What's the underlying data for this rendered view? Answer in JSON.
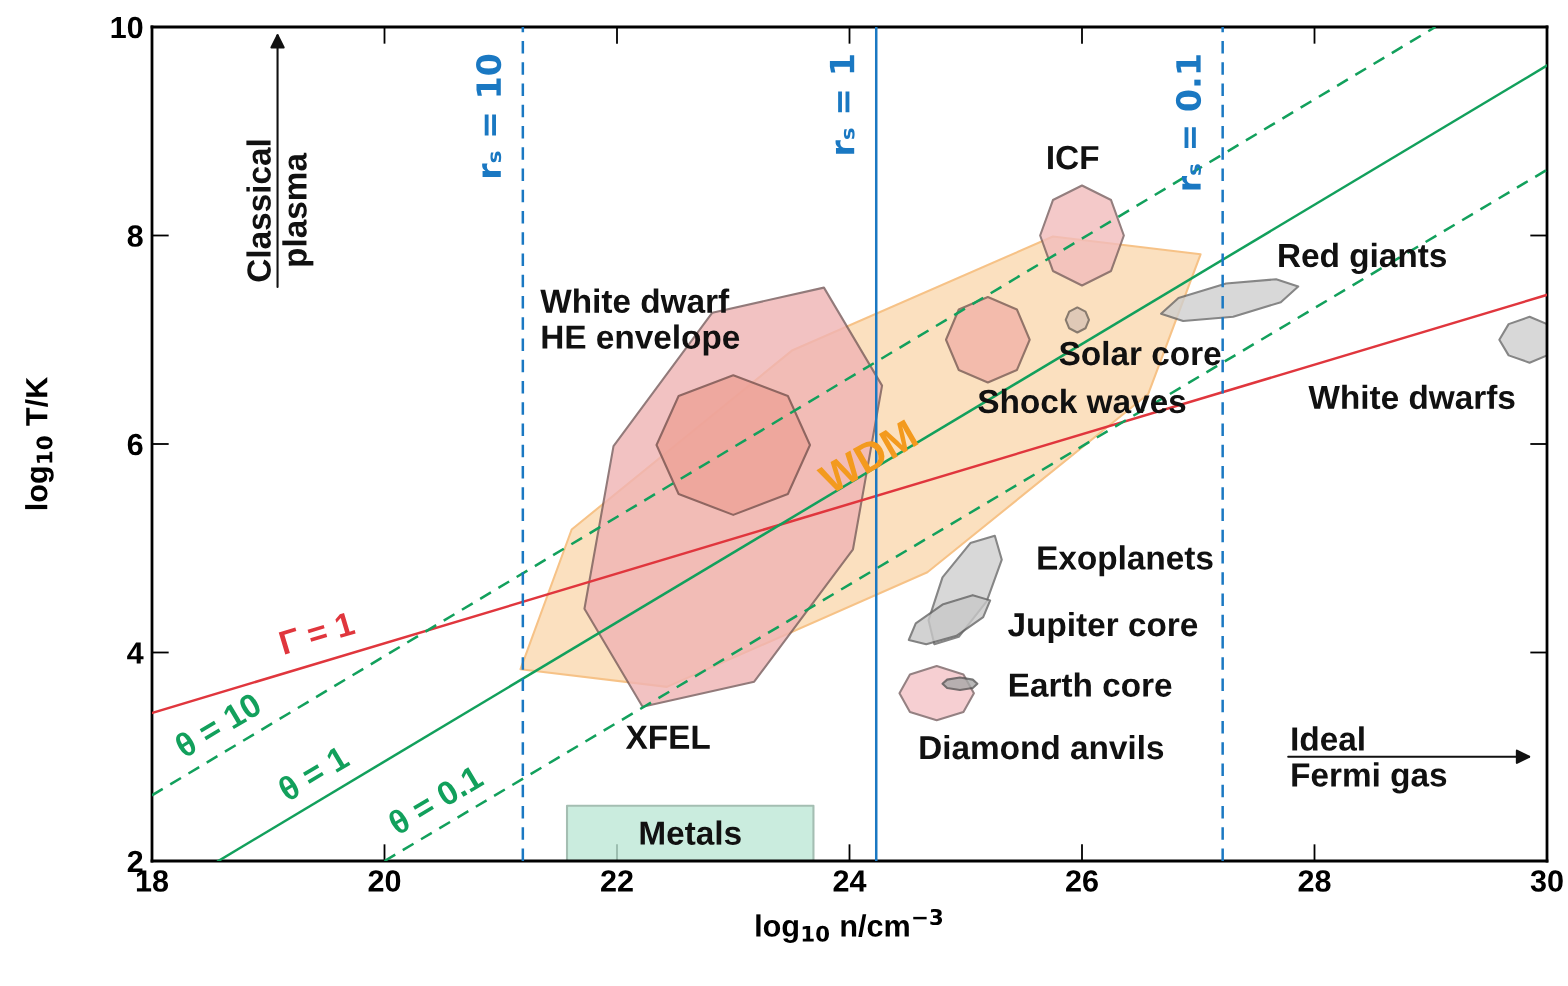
{
  "chart_data": {
    "type": "line",
    "xlabel": "log$_{10}$ n/cm$^{−3}$",
    "ylabel": "log$_{10}$ T/K",
    "xlim": [
      18,
      30
    ],
    "xticks": [
      18,
      20,
      22,
      24,
      26,
      28,
      30
    ],
    "ylim": [
      2,
      10
    ],
    "yticks": [
      2,
      4,
      6,
      8,
      10
    ],
    "grid": false,
    "legend": false,
    "series": [
      {
        "type": "area",
        "color": "#fbd9b0",
        "x": [
          27.02,
          26.57,
          24.67,
          22.43,
          21.17,
          21.61,
          23.51,
          25.75
        ],
        "values": [
          7.82,
          6.48,
          4.77,
          3.67,
          3.84,
          5.18,
          6.9,
          7.99
        ]
      },
      {
        "type": "area",
        "color": "#f0b4b4",
        "x": [
          23.78,
          24.28,
          24.03,
          23.18,
          22.22,
          21.72,
          21.97,
          22.82
        ],
        "values": [
          7.5,
          6.56,
          4.99,
          3.72,
          3.48,
          4.42,
          5.98,
          7.26
        ]
      },
      {
        "type": "area",
        "color": "#eea297",
        "x": [
          23.66,
          23.47,
          23.0,
          22.53,
          22.34,
          22.53,
          23.0,
          23.47
        ],
        "values": [
          5.99,
          6.46,
          6.66,
          6.46,
          5.99,
          5.52,
          5.32,
          5.52
        ]
      },
      {
        "type": "area",
        "color": "#f2bcbc",
        "x": [
          26.36,
          26.25,
          26.0,
          25.75,
          25.64,
          25.75,
          26.0,
          26.25
        ],
        "values": [
          8.0,
          8.34,
          8.48,
          8.34,
          8.0,
          7.66,
          7.52,
          7.66
        ]
      },
      {
        "type": "area",
        "color": "#d9c4b6",
        "x": [
          26.06,
          26.03,
          25.96,
          25.89,
          25.86,
          25.89,
          25.96,
          26.03
        ],
        "values": [
          7.19,
          7.27,
          7.31,
          7.27,
          7.19,
          7.11,
          7.07,
          7.11
        ]
      },
      {
        "type": "area",
        "color": "#f2b3a8",
        "x": [
          25.55,
          25.44,
          25.19,
          24.94,
          24.83,
          24.94,
          25.19,
          25.44
        ],
        "values": [
          7.0,
          7.29,
          7.41,
          7.29,
          7.0,
          6.71,
          6.59,
          6.71
        ]
      },
      {
        "type": "area",
        "color": "#cfcfcf",
        "x": [
          27.86,
          27.71,
          27.3,
          26.87,
          26.68,
          26.83,
          27.24,
          27.67
        ],
        "values": [
          7.51,
          7.36,
          7.22,
          7.18,
          7.25,
          7.4,
          7.54,
          7.58
        ]
      },
      {
        "type": "area",
        "color": "#cfcfcf",
        "x": [
          30.0,
          29.85,
          29.67,
          29.59,
          29.67,
          29.85,
          30.0
        ],
        "values": [
          7.15,
          7.22,
          7.15,
          7.0,
          6.85,
          6.78,
          6.85
        ]
      },
      {
        "type": "area",
        "color": "#cfcfcf",
        "x": [
          25.25,
          25.31,
          25.18,
          24.94,
          24.73,
          24.68,
          24.8,
          25.04
        ],
        "values": [
          5.12,
          4.89,
          4.49,
          4.15,
          4.08,
          4.31,
          4.72,
          5.05
        ]
      },
      {
        "type": "area",
        "color": "#c8c8c8",
        "x": [
          25.21,
          25.15,
          24.92,
          24.66,
          24.51,
          24.57,
          24.8,
          25.06
        ],
        "values": [
          4.5,
          4.34,
          4.16,
          4.08,
          4.12,
          4.28,
          4.46,
          4.55
        ]
      },
      {
        "type": "area",
        "color": "#f4c4c8",
        "x": [
          25.07,
          24.98,
          24.75,
          24.52,
          24.43,
          24.52,
          24.75,
          24.98
        ],
        "values": [
          3.61,
          3.79,
          3.87,
          3.79,
          3.61,
          3.43,
          3.35,
          3.43
        ]
      },
      {
        "type": "area",
        "color": "#a8a8a8",
        "x": [
          25.1,
          25.06,
          24.95,
          24.84,
          24.8,
          24.84,
          24.95,
          25.06
        ],
        "values": [
          3.7,
          3.74,
          3.76,
          3.74,
          3.7,
          3.66,
          3.64,
          3.66
        ]
      },
      {
        "type": "area",
        "color": "#bde8d6",
        "x": [
          21.57,
          23.69,
          23.69,
          21.57
        ],
        "values": [
          2.0,
          2.0,
          2.53,
          2.53
        ]
      },
      {
        "name": "Γ = 1",
        "color": "#e0363d",
        "line_style": "solid",
        "x": [
          18,
          30
        ],
        "values": [
          3.42,
          7.43
        ]
      },
      {
        "name": "θ = 10",
        "color": "#12a05c",
        "line_style": "dashed",
        "x": [
          18,
          29.04
        ],
        "values": [
          2.63,
          10
        ]
      },
      {
        "name": "θ = 1",
        "color": "#12a05c",
        "line_style": "solid",
        "x": [
          18.57,
          30
        ],
        "values": [
          2,
          9.63
        ]
      },
      {
        "name": "θ = 0.1",
        "color": "#12a05c",
        "line_style": "dashed",
        "x": [
          20.0,
          30
        ],
        "values": [
          2,
          8.63
        ]
      },
      {
        "name": "rₛ = 10",
        "color": "#1a78c2",
        "line_style": "dashed",
        "x": [
          21.19,
          21.19
        ],
        "values": [
          2,
          10
        ]
      },
      {
        "name": "rₛ = 1",
        "color": "#1a78c2",
        "line_style": "solid",
        "x": [
          24.23,
          24.23
        ],
        "values": [
          2,
          10
        ]
      },
      {
        "name": "rₛ = 0.1",
        "color": "#1a78c2",
        "line_style": "dashed",
        "x": [
          27.21,
          27.21
        ],
        "values": [
          2,
          10
        ]
      }
    ],
    "annotations": [
      "Classical\nplasma",
      "Ideal\nFermi gas",
      "WDM",
      "White dwarf\nHE envelope",
      "XFEL",
      "ICF",
      "Red giants",
      "Solar core",
      "Shock waves",
      "White dwarfs",
      "Exoplanets",
      "Jupiter core",
      "Earth core",
      "Diamond anvils",
      "Metals"
    ]
  }
}
